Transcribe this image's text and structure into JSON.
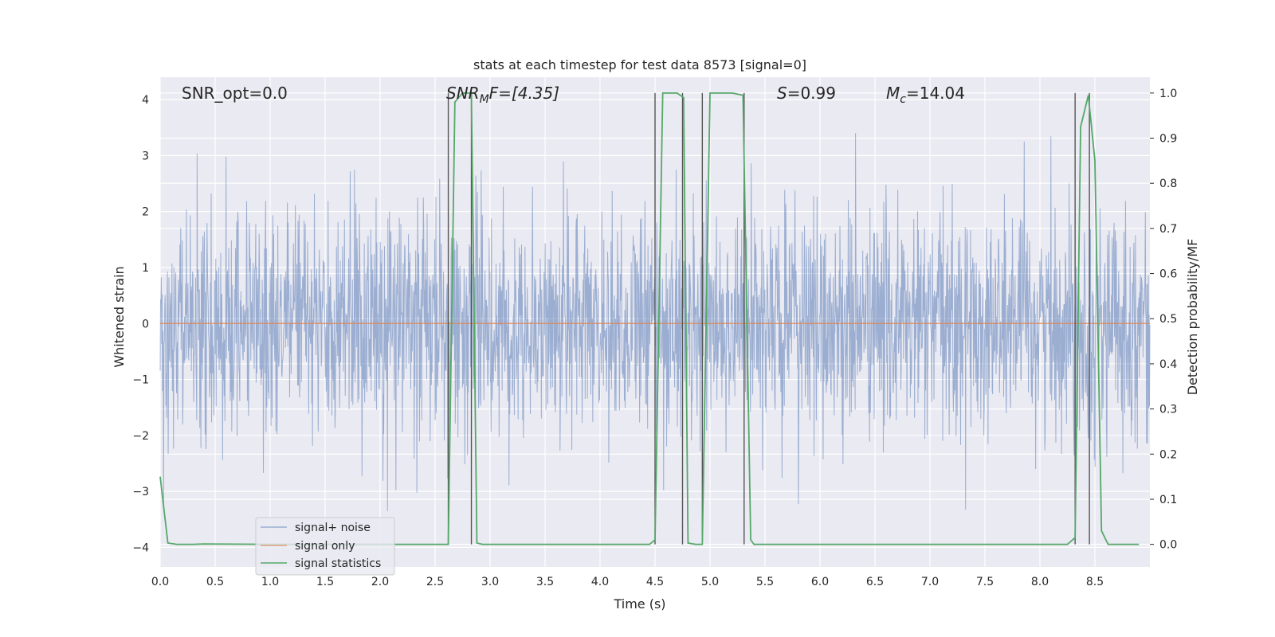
{
  "chart_data": {
    "type": "line",
    "title": "stats at each timestep for test data 8573 [signal=0]",
    "xlabel": "Time (s)",
    "ylabel_left": "Whitened strain",
    "ylabel_right": "Detection probability/MF",
    "xlim": [
      0.0,
      9.0
    ],
    "ylim_left": [
      -4.35,
      4.4
    ],
    "ylim_right": [
      -0.05,
      1.035
    ],
    "xticks": [
      "0.0",
      "0.5",
      "1.0",
      "1.5",
      "2.0",
      "2.5",
      "3.0",
      "3.5",
      "4.0",
      "4.5",
      "5.0",
      "5.5",
      "6.0",
      "6.5",
      "7.0",
      "7.5",
      "8.0",
      "8.5"
    ],
    "xtick_values": [
      0.0,
      0.5,
      1.0,
      1.5,
      2.0,
      2.5,
      3.0,
      3.5,
      4.0,
      4.5,
      5.0,
      5.5,
      6.0,
      6.5,
      7.0,
      7.5,
      8.0,
      8.5
    ],
    "yticks_left": [
      "−4",
      "−3",
      "−2",
      "−1",
      "0",
      "1",
      "2",
      "3",
      "4"
    ],
    "ytick_values_left": [
      -4,
      -3,
      -2,
      -1,
      0,
      1,
      2,
      3,
      4
    ],
    "yticks_right": [
      "0.0",
      "0.1",
      "0.2",
      "0.3",
      "0.4",
      "0.5",
      "0.6",
      "0.7",
      "0.8",
      "0.9",
      "1.0"
    ],
    "ytick_values_right": [
      0.0,
      0.1,
      0.2,
      0.3,
      0.4,
      0.5,
      0.6,
      0.7,
      0.8,
      0.9,
      1.0
    ],
    "grid": true,
    "legend_position": "lower-left",
    "annotations": {
      "snr_opt": "SNR_opt=0.0",
      "snr_mf_main": "SNR",
      "snr_mf_sub": "M",
      "snr_mf_rest": "F=[4.35]",
      "s_main": "S",
      "s_rest": "=0.99",
      "mc_main": "M",
      "mc_sub": "c",
      "mc_rest": "=14.04"
    },
    "series": [
      {
        "name": "signal+ noise",
        "color": "#4c72b0",
        "axis": "left",
        "description_values": "noise strain, amplitude roughly within -3.4 to 3.4"
      },
      {
        "name": "signal only",
        "color": "#dd8452",
        "axis": "left",
        "x": [
          0.0,
          9.0
        ],
        "y": [
          0.0,
          0.0
        ]
      },
      {
        "name": "signal statistics",
        "color": "#55a868",
        "axis": "right",
        "x": [
          0.0,
          0.07,
          0.15,
          0.3,
          0.4,
          1.0,
          2.0,
          2.5,
          2.62,
          2.68,
          2.75,
          2.83,
          2.88,
          2.93,
          3.5,
          4.0,
          4.45,
          4.5,
          4.57,
          4.7,
          4.76,
          4.8,
          4.87,
          4.93,
          5.0,
          5.2,
          5.3,
          5.37,
          5.4,
          6.0,
          7.0,
          8.0,
          8.25,
          8.32,
          8.37,
          8.44,
          8.5,
          8.56,
          8.62,
          8.7,
          8.9
        ],
        "y": [
          0.15,
          0.003,
          0.0,
          0.0,
          0.001,
          0.0,
          0.0,
          0.0,
          0.0,
          0.98,
          1.0,
          1.0,
          0.003,
          0.0,
          0.0,
          0.0,
          0.0,
          0.01,
          1.0,
          1.0,
          0.99,
          0.003,
          0.0,
          0.0,
          1.0,
          1.0,
          0.995,
          0.01,
          0.0,
          0.0,
          0.0,
          0.0,
          0.0,
          0.015,
          0.925,
          0.995,
          0.85,
          0.03,
          0.0,
          0.0,
          0.0
        ]
      }
    ],
    "vlines": [
      2.62,
      2.83,
      4.5,
      4.75,
      4.93,
      5.31,
      8.32,
      8.45
    ]
  }
}
